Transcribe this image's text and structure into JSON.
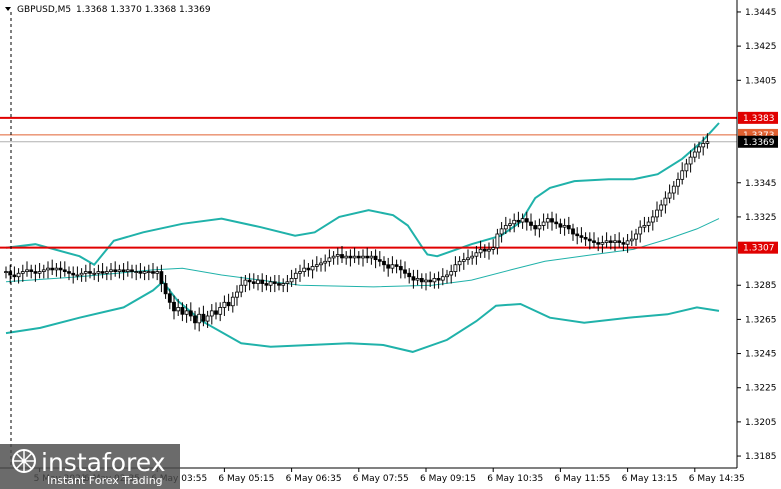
{
  "header": {
    "symbol": "GBPUSD,M5",
    "ohlc": "1.3368 1.3370 1.3368 1.3369"
  },
  "watermark": {
    "brand": "instaforex",
    "tagline": "Instant Forex Trading"
  },
  "colors": {
    "background": "#ffffff",
    "candle": "#000000",
    "bollinger": "#20b2aa",
    "level_line": "#e00000",
    "ask_line": "#e06030",
    "bid_tag": "#000000"
  },
  "chart_data": {
    "type": "candlestick",
    "symbol": "GBPUSD",
    "timeframe": "M5",
    "ylim": [
      1.3178,
      1.3452
    ],
    "y_ticks": [
      "1.3445",
      "1.3425",
      "1.3405",
      "1.3345",
      "1.3325",
      "1.3285",
      "1.3265",
      "1.3245",
      "1.3225",
      "1.3205",
      "1.3185"
    ],
    "x_ticks": [
      {
        "i": 8,
        "label": "5 May 2021"
      },
      {
        "i": 20,
        "label": "6 May 02:35"
      },
      {
        "i": 36,
        "label": "6 May 03:55"
      },
      {
        "i": 52,
        "label": "6 May 05:15"
      },
      {
        "i": 68,
        "label": "6 May 06:35"
      },
      {
        "i": 84,
        "label": "6 May 07:55"
      },
      {
        "i": 100,
        "label": "6 May 09:15"
      },
      {
        "i": 116,
        "label": "6 May 10:35"
      },
      {
        "i": 132,
        "label": "6 May 11:55"
      },
      {
        "i": 148,
        "label": "6 May 13:15"
      },
      {
        "i": 164,
        "label": "6 May 14:35"
      }
    ],
    "levels": [
      {
        "value": 1.3383,
        "label": "1.3383"
      },
      {
        "value": 1.3307,
        "label": "1.3307"
      }
    ],
    "ask_line": 1.3373,
    "ask_label": "1.3373",
    "current_price": 1.3369,
    "current_label": "1.3369",
    "close_prices": [
      1.3293,
      1.3291,
      1.329,
      1.3292,
      1.3293,
      1.3294,
      1.3293,
      1.3292,
      1.3293,
      1.3294,
      1.3295,
      1.3294,
      1.3295,
      1.3294,
      1.3293,
      1.3292,
      1.3291,
      1.3291,
      1.3292,
      1.3293,
      1.3292,
      1.3292,
      1.3293,
      1.3292,
      1.3293,
      1.3294,
      1.3293,
      1.3294,
      1.3293,
      1.3294,
      1.3293,
      1.3293,
      1.3292,
      1.3293,
      1.3293,
      1.3292,
      1.3293,
      1.3286,
      1.328,
      1.3275,
      1.327,
      1.3272,
      1.3268,
      1.327,
      1.3267,
      1.3263,
      1.3268,
      1.3264,
      1.3267,
      1.327,
      1.3268,
      1.3272,
      1.3275,
      1.3273,
      1.3278,
      1.3281,
      1.3285,
      1.3288,
      1.3287,
      1.3286,
      1.3288,
      1.3286,
      1.3285,
      1.3287,
      1.3286,
      1.3285,
      1.3286,
      1.3287,
      1.3289,
      1.3292,
      1.3293,
      1.3295,
      1.3294,
      1.3296,
      1.3297,
      1.3298,
      1.3299,
      1.3301,
      1.3302,
      1.3303,
      1.3301,
      1.3302,
      1.3301,
      1.3302,
      1.3301,
      1.3302,
      1.3301,
      1.3302,
      1.33,
      1.3299,
      1.3297,
      1.3295,
      1.3297,
      1.3296,
      1.3294,
      1.3292,
      1.329,
      1.3288,
      1.3289,
      1.3287,
      1.3288,
      1.3287,
      1.3289,
      1.3288,
      1.329,
      1.3291,
      1.3293,
      1.3297,
      1.3299,
      1.33,
      1.3301,
      1.3302,
      1.3304,
      1.3306,
      1.3305,
      1.3306,
      1.3307,
      1.3315,
      1.3318,
      1.332,
      1.3321,
      1.3323,
      1.3322,
      1.3324,
      1.3322,
      1.332,
      1.3318,
      1.332,
      1.3322,
      1.3324,
      1.3322,
      1.3321,
      1.3319,
      1.332,
      1.3318,
      1.3315,
      1.3314,
      1.3313,
      1.3312,
      1.3311,
      1.331,
      1.3309,
      1.331,
      1.3311,
      1.331,
      1.3311,
      1.331,
      1.3309,
      1.3311,
      1.3312,
      1.3315,
      1.3319,
      1.332,
      1.3322,
      1.3325,
      1.3329,
      1.3332,
      1.3336,
      1.3339,
      1.3343,
      1.3347,
      1.3352,
      1.3356,
      1.336,
      1.3363,
      1.3366,
      1.3368,
      1.3369
    ],
    "bollinger_upper": [
      [
        0,
        1.3307
      ],
      [
        12,
        1.3309
      ],
      [
        30,
        1.3302
      ],
      [
        36,
        1.3297
      ],
      [
        44,
        1.3311
      ],
      [
        56,
        1.3316
      ],
      [
        72,
        1.3321
      ],
      [
        88,
        1.3324
      ],
      [
        104,
        1.3319
      ],
      [
        118,
        1.3314
      ],
      [
        126,
        1.3316
      ],
      [
        136,
        1.3325
      ],
      [
        148,
        1.3329
      ],
      [
        158,
        1.3326
      ],
      [
        164,
        1.332
      ],
      [
        170,
        1.3307
      ],
      [
        172,
        1.3303
      ],
      [
        176,
        1.3302
      ],
      [
        182,
        1.3305
      ],
      [
        190,
        1.3309
      ],
      [
        202,
        1.3314
      ],
      [
        210,
        1.3322
      ],
      [
        216,
        1.3336
      ],
      [
        222,
        1.3342
      ],
      [
        232,
        1.3346
      ],
      [
        246,
        1.3347
      ],
      [
        256,
        1.3347
      ],
      [
        266,
        1.335
      ],
      [
        276,
        1.3359
      ],
      [
        284,
        1.3369
      ],
      [
        291,
        1.338
      ]
    ],
    "bollinger_middle": [
      [
        0,
        1.3287
      ],
      [
        30,
        1.329
      ],
      [
        60,
        1.3294
      ],
      [
        72,
        1.3295
      ],
      [
        88,
        1.3291
      ],
      [
        104,
        1.3288
      ],
      [
        120,
        1.3285
      ],
      [
        150,
        1.3284
      ],
      [
        174,
        1.3285
      ],
      [
        190,
        1.3288
      ],
      [
        206,
        1.3294
      ],
      [
        220,
        1.3299
      ],
      [
        240,
        1.3303
      ],
      [
        256,
        1.3306
      ],
      [
        270,
        1.3312
      ],
      [
        282,
        1.3318
      ],
      [
        291,
        1.3324
      ]
    ],
    "bollinger_lower": [
      [
        0,
        1.3257
      ],
      [
        14,
        1.326
      ],
      [
        30,
        1.3266
      ],
      [
        48,
        1.3272
      ],
      [
        60,
        1.3282
      ],
      [
        64,
        1.3287
      ],
      [
        70,
        1.3276
      ],
      [
        80,
        1.3264
      ],
      [
        96,
        1.3251
      ],
      [
        108,
        1.3249
      ],
      [
        124,
        1.325
      ],
      [
        140,
        1.3251
      ],
      [
        154,
        1.325
      ],
      [
        166,
        1.3246
      ],
      [
        180,
        1.3253
      ],
      [
        192,
        1.3264
      ],
      [
        200,
        1.3273
      ],
      [
        210,
        1.3274
      ],
      [
        222,
        1.3266
      ],
      [
        236,
        1.3263
      ],
      [
        254,
        1.3266
      ],
      [
        270,
        1.3268
      ],
      [
        282,
        1.3272
      ],
      [
        291,
        1.327
      ]
    ]
  }
}
